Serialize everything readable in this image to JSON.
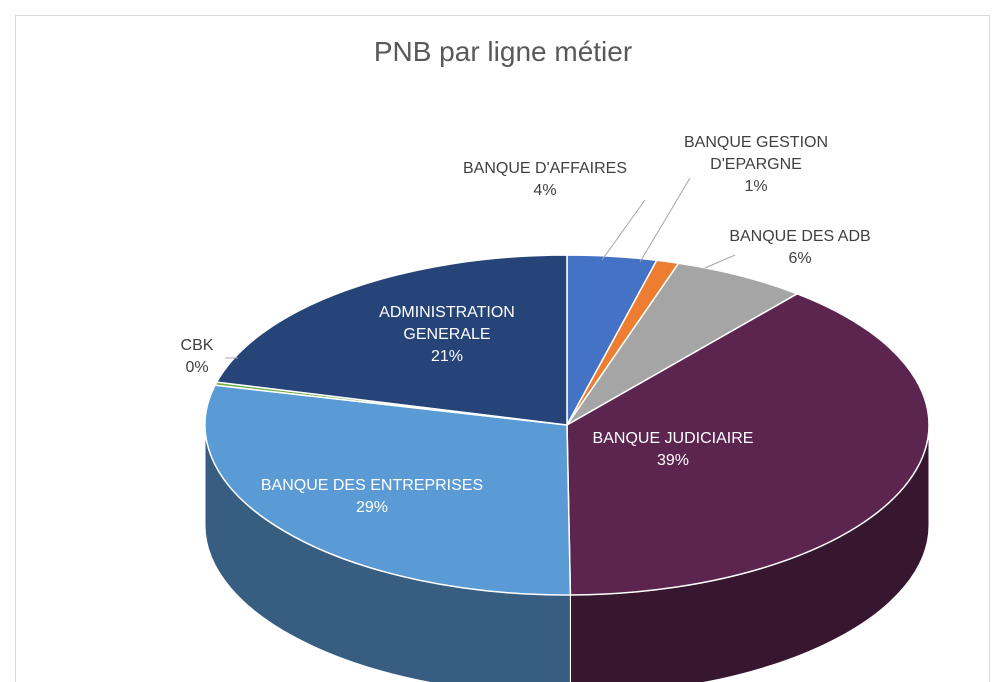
{
  "chart_data": {
    "type": "pie3d",
    "title": "PNB par ligne métier",
    "categories": [
      "BANQUE D'AFFAIRES",
      "BANQUE GESTION D'EPARGNE",
      "BANQUE DES ADB",
      "BANQUE JUDICIAIRE",
      "BANQUE DES ENTREPRISES",
      "CBK",
      "ADMINISTRATION GENERALE"
    ],
    "values": [
      4,
      1,
      6,
      39,
      29,
      0.3,
      21
    ],
    "value_labels": [
      "4%",
      "1%",
      "6%",
      "39%",
      "29%",
      "0%",
      "21%"
    ],
    "colors": [
      "#4472c4",
      "#ed7d31",
      "#a5a5a5",
      "#5b2550",
      "#5b9bd5",
      "#70ad47",
      "#264478"
    ]
  }
}
